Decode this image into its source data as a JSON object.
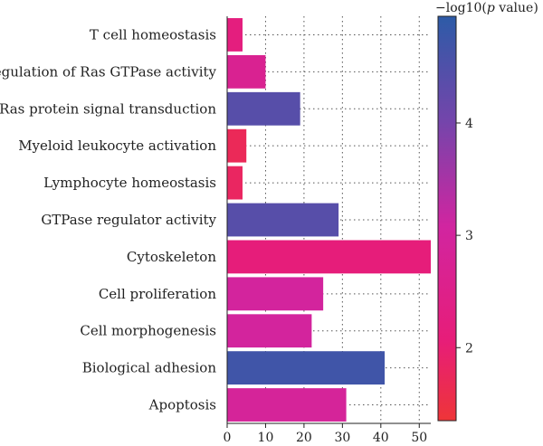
{
  "chart_data": {
    "type": "bar",
    "orientation": "horizontal",
    "categories": [
      "T cell homeostasis",
      "Regulation of Ras GTPase activity",
      "Ras protein signal transduction",
      "Myeloid leukocyte activation",
      "Lymphocyte homeostasis",
      "GTPase regulator activity",
      "Cytoskeleton",
      "Cell proliferation",
      "Cell morphogenesis",
      "Biological adhesion",
      "Apoptosis"
    ],
    "values": [
      4,
      10,
      19,
      5,
      4,
      29,
      53,
      25,
      22,
      41,
      31
    ],
    "color_values": [
      2.2,
      2.7,
      4.4,
      1.7,
      1.8,
      4.4,
      2.1,
      3.0,
      3.0,
      4.7,
      2.9
    ],
    "xlim": [
      0,
      53
    ],
    "xticks": [
      0,
      10,
      20,
      30,
      40,
      50
    ],
    "grid": true,
    "grid_style": "dotted",
    "colorbar": {
      "title_prefix": "−log10(",
      "title_italic": "p",
      "title_suffix": " value)",
      "range": [
        1.35,
        4.95
      ],
      "ticks": [
        2,
        3,
        4
      ],
      "colors": [
        "#ee3538",
        "#e71d79",
        "#d125a0",
        "#7445ab",
        "#2d5ba7"
      ]
    }
  }
}
